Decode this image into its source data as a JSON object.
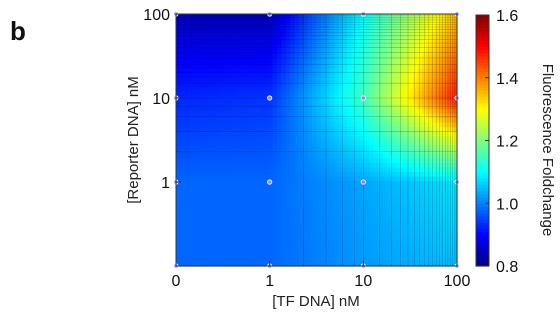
{
  "panel_label": "b",
  "chart_data": {
    "type": "heatmap",
    "title": "",
    "xlabel": "[TF DNA] nM",
    "ylabel": "[Reporter DNA] nM",
    "x_ticks": [
      "0",
      "1",
      "10",
      "100"
    ],
    "y_ticks": [
      "1",
      "10",
      "100"
    ],
    "x_scale": "log (0 at left edge)",
    "y_scale": "log (0 at bottom edge)",
    "measured_points": [
      {
        "x": 0,
        "y": 0
      },
      {
        "x": 1,
        "y": 0
      },
      {
        "x": 10,
        "y": 0
      },
      {
        "x": 100,
        "y": 0
      },
      {
        "x": 0,
        "y": 1
      },
      {
        "x": 1,
        "y": 1
      },
      {
        "x": 10,
        "y": 1
      },
      {
        "x": 100,
        "y": 1
      },
      {
        "x": 0,
        "y": 10
      },
      {
        "x": 1,
        "y": 10
      },
      {
        "x": 10,
        "y": 10
      },
      {
        "x": 100,
        "y": 10
      },
      {
        "x": 0,
        "y": 100
      },
      {
        "x": 1,
        "y": 100
      },
      {
        "x": 10,
        "y": 100
      },
      {
        "x": 100,
        "y": 100
      }
    ],
    "foldchange_grid": {
      "x": [
        0,
        1,
        10,
        100
      ],
      "y": [
        0,
        1,
        10,
        100
      ],
      "z": [
        [
          0.98,
          0.98,
          1.02,
          1.05
        ],
        [
          0.98,
          0.98,
          1.03,
          1.08
        ],
        [
          0.93,
          0.94,
          1.15,
          1.48
        ],
        [
          0.85,
          0.85,
          1.1,
          1.35
        ]
      ]
    },
    "colorbar": {
      "label": "Fluorescence Foldchange",
      "min": 0.8,
      "max": 1.6,
      "ticks": [
        "0.8",
        "1.0",
        "1.2",
        "1.4",
        "1.6"
      ],
      "colormap": "jet"
    }
  }
}
